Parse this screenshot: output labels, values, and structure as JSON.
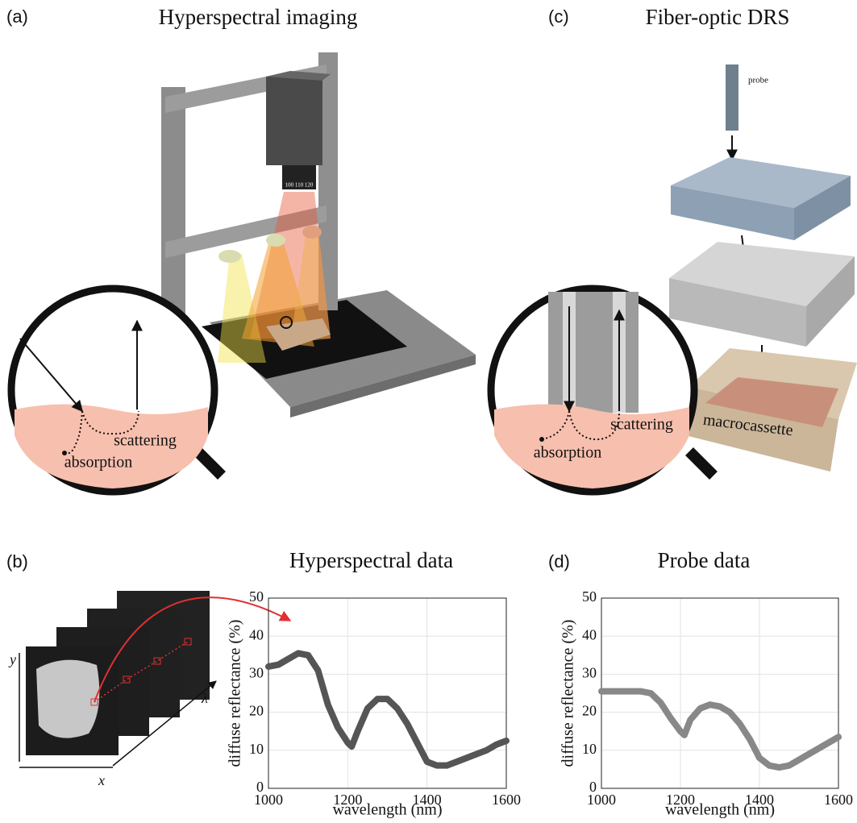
{
  "panels": [
    {
      "label": "(a)",
      "title": "Hyperspectral imaging"
    },
    {
      "label": "(c)",
      "title": "Fiber-optic DRS"
    },
    {
      "label": "(b)"
    },
    {
      "label": "(d)"
    }
  ],
  "illustration_a": {
    "lens": "100 110 120",
    "scattering": "scattering",
    "absorption": "absorption"
  },
  "illustration_b": {
    "y": "y",
    "x": "x",
    "lambda": "λ"
  },
  "illustration_c": {
    "probe": "probe",
    "scattering": "scattering",
    "absorption": "absorption",
    "cassette": "macrocassette"
  },
  "chart_data": [
    {
      "type": "line",
      "title": "Hyperspectral data",
      "xlabel": "wavelength (nm)",
      "ylabel": "diffuse reflectance (%)",
      "x": [
        1000,
        1025,
        1050,
        1075,
        1100,
        1125,
        1150,
        1175,
        1200,
        1210,
        1225,
        1250,
        1275,
        1300,
        1325,
        1350,
        1375,
        1400,
        1425,
        1450,
        1475,
        1500,
        1525,
        1550,
        1575,
        1600
      ],
      "values": [
        32,
        32.5,
        34,
        35.5,
        35,
        31,
        22,
        16,
        12,
        11,
        15,
        21,
        23.5,
        23.5,
        21,
        17,
        12,
        7,
        6,
        6,
        7,
        8,
        9,
        10,
        11.5,
        12.5
      ],
      "color": "#555555",
      "xlim": [
        1000,
        1600
      ],
      "ylim": [
        0,
        50
      ],
      "xticks": [
        1000,
        1200,
        1400,
        1600
      ],
      "yticks": [
        0,
        10,
        20,
        30,
        40,
        50
      ],
      "grid": true
    },
    {
      "type": "line",
      "title": "Probe data",
      "xlabel": "wavelength (nm)",
      "ylabel": "diffuse reflectance (%)",
      "x": [
        1000,
        1050,
        1100,
        1125,
        1150,
        1175,
        1200,
        1210,
        1225,
        1250,
        1275,
        1300,
        1325,
        1350,
        1375,
        1400,
        1425,
        1450,
        1475,
        1500,
        1525,
        1550,
        1575,
        1600
      ],
      "values": [
        25.5,
        25.5,
        25.5,
        25,
        22.5,
        18.5,
        15,
        14,
        18,
        21,
        22,
        21.5,
        20,
        17,
        13,
        8,
        6,
        5.5,
        6,
        7.5,
        9,
        10.5,
        12,
        13.5
      ],
      "color": "#888888",
      "xlim": [
        1000,
        1600
      ],
      "ylim": [
        0,
        50
      ],
      "xticks": [
        1000,
        1200,
        1400,
        1600
      ],
      "yticks": [
        0,
        10,
        20,
        30,
        40,
        50
      ],
      "grid": true
    }
  ]
}
